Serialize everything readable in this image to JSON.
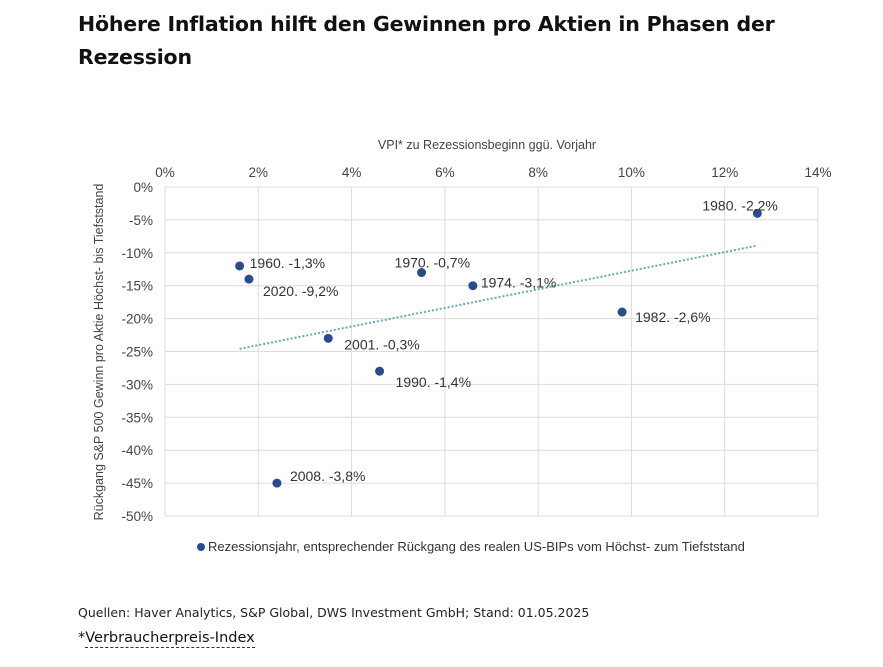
{
  "title": "Höhere Inflation hilft den Gewinnen pro Aktien in Phasen der Rezession",
  "chart_data": {
    "type": "scatter",
    "xlabel": "VPI* zu Rezessionsbeginn ggü. Vorjahr",
    "ylabel": "Rückgang S&P 500 Gewinn pro Aktie Höchst- bis Tiefststand",
    "xlim": [
      0,
      14
    ],
    "ylim": [
      -50,
      0
    ],
    "x_ticks": [
      "0%",
      "2%",
      "4%",
      "6%",
      "8%",
      "10%",
      "12%",
      "14%"
    ],
    "y_ticks": [
      "0%",
      "-5%",
      "-10%",
      "-15%",
      "-20%",
      "-25%",
      "-30%",
      "-35%",
      "-40%",
      "-45%",
      "-50%"
    ],
    "grid": true,
    "x_axis_position": "top",
    "legend": "Rezessionsjahr, entsprechender Rückgang des realen US-BIPs vom Höchst- zum Tiefststand",
    "legend_position": "bottom",
    "point_color": "#2a4b8d",
    "trend_color": "#5bb0b0",
    "series": [
      {
        "name": "Rezessionsjahr",
        "points": [
          {
            "x": 1.6,
            "y": -12,
            "label": "1960. -1,3%"
          },
          {
            "x": 1.8,
            "y": -14,
            "label": "2020. -9,2%"
          },
          {
            "x": 2.4,
            "y": -45,
            "label": "2008. -3,8%"
          },
          {
            "x": 3.5,
            "y": -23,
            "label": "2001. -0,3%"
          },
          {
            "x": 4.6,
            "y": -28,
            "label": "1990. -1,4%"
          },
          {
            "x": 5.5,
            "y": -13,
            "label": "1970. -0,7%"
          },
          {
            "x": 6.6,
            "y": -15,
            "label": "1974. -3,1%"
          },
          {
            "x": 9.8,
            "y": -19,
            "label": "1982. -2,6%"
          },
          {
            "x": 12.7,
            "y": -4,
            "label": "1980. -2,2%"
          }
        ]
      }
    ],
    "trendline": {
      "x": [
        1.6,
        12.7
      ],
      "y": [
        -24.6,
        -8.9
      ]
    }
  },
  "source": "Quellen: Haver Analytics, S&P Global, DWS Investment GmbH; Stand: 01.05.2025",
  "footnote": {
    "prefix": "*",
    "link_text": "Verbraucherpreis-Index"
  }
}
